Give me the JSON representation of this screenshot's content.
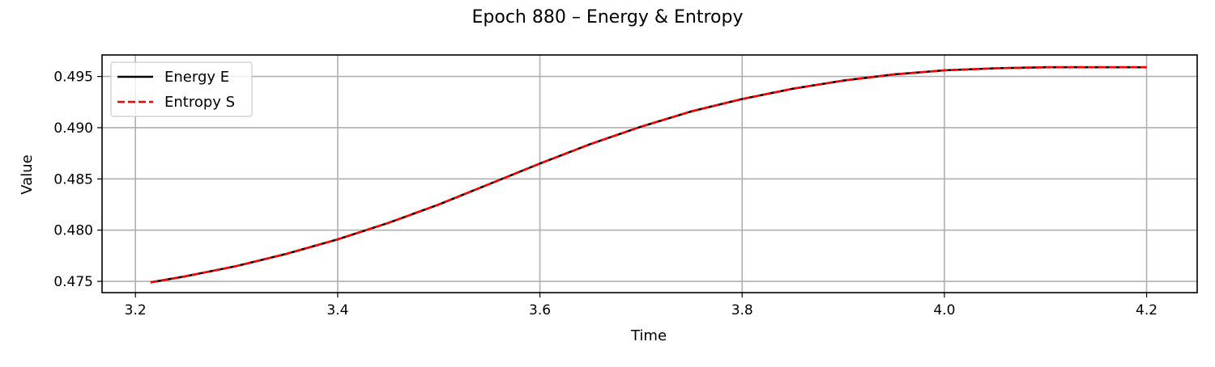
{
  "chart_data": {
    "type": "line",
    "title": "Epoch 880 – Energy & Entropy",
    "xlabel": "Time",
    "ylabel": "Value",
    "xlim": [
      3.167,
      4.25
    ],
    "ylim": [
      0.4739,
      0.4971
    ],
    "x_ticks": [
      3.2,
      3.4,
      3.6,
      3.8,
      4.0,
      4.2
    ],
    "x_tick_labels": [
      "3.2",
      "3.4",
      "3.6",
      "3.8",
      "4.0",
      "4.2"
    ],
    "y_ticks": [
      0.475,
      0.48,
      0.485,
      0.49,
      0.495
    ],
    "y_tick_labels": [
      "0.475",
      "0.480",
      "0.485",
      "0.490",
      "0.495"
    ],
    "grid": true,
    "legend_position": "upper-left",
    "series": [
      {
        "name": "Energy E",
        "color": "#000000",
        "style": "solid",
        "x": [
          3.215,
          3.25,
          3.3,
          3.35,
          3.4,
          3.45,
          3.5,
          3.55,
          3.6,
          3.65,
          3.7,
          3.75,
          3.8,
          3.85,
          3.9,
          3.95,
          4.0,
          4.05,
          4.1,
          4.15,
          4.2
        ],
        "y": [
          0.4749,
          0.4755,
          0.4765,
          0.4777,
          0.4791,
          0.4807,
          0.4825,
          0.4845,
          0.4865,
          0.4884,
          0.4901,
          0.4916,
          0.4928,
          0.4938,
          0.4946,
          0.4952,
          0.4956,
          0.4958,
          0.4959,
          0.4959,
          0.4959
        ]
      },
      {
        "name": "Entropy S",
        "color": "#ff0000",
        "style": "dashed",
        "x": [
          3.215,
          3.25,
          3.3,
          3.35,
          3.4,
          3.45,
          3.5,
          3.55,
          3.6,
          3.65,
          3.7,
          3.75,
          3.8,
          3.85,
          3.9,
          3.95,
          4.0,
          4.05,
          4.1,
          4.15,
          4.2
        ],
        "y": [
          0.4749,
          0.4755,
          0.4765,
          0.4777,
          0.4791,
          0.4807,
          0.4825,
          0.4845,
          0.4865,
          0.4884,
          0.4901,
          0.4916,
          0.4928,
          0.4938,
          0.4946,
          0.4952,
          0.4956,
          0.4958,
          0.4959,
          0.4959,
          0.4959
        ]
      }
    ]
  }
}
